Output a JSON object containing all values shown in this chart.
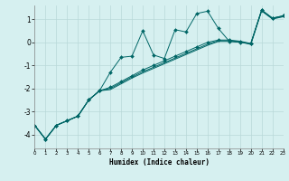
{
  "xlabel": "Humidex (Indice chaleur)",
  "background_color": "#d6f0f0",
  "grid_color": "#b8d8d8",
  "line_color": "#006666",
  "x_ticks": [
    0,
    1,
    2,
    3,
    4,
    5,
    6,
    7,
    8,
    9,
    10,
    11,
    12,
    13,
    14,
    15,
    16,
    17,
    18,
    19,
    20,
    21,
    22,
    23
  ],
  "y_ticks": [
    -4,
    -3,
    -2,
    -1,
    0,
    1
  ],
  "xlim": [
    0,
    23
  ],
  "ylim": [
    -4.6,
    1.6
  ],
  "series1_x": [
    0,
    1,
    2,
    3,
    4,
    5,
    6,
    7,
    8,
    9,
    10,
    11,
    12,
    13,
    14,
    15,
    16,
    17,
    18,
    19,
    20,
    21,
    22,
    23
  ],
  "series1_y": [
    -3.6,
    -4.2,
    -3.6,
    -3.4,
    -3.2,
    -2.5,
    -2.1,
    -1.3,
    -0.65,
    -0.6,
    0.5,
    -0.55,
    -0.7,
    0.55,
    0.45,
    1.25,
    1.35,
    0.6,
    0.05,
    0.0,
    -0.05,
    1.4,
    1.05,
    1.15
  ],
  "series2_x": [
    0,
    1,
    2,
    3,
    4,
    5,
    6,
    7,
    8,
    9,
    10,
    11,
    12,
    13,
    14,
    15,
    16,
    17,
    18,
    19,
    20,
    21,
    22,
    23
  ],
  "series2_y": [
    -3.6,
    -4.2,
    -3.6,
    -3.4,
    -3.2,
    -2.5,
    -2.1,
    -1.95,
    -1.7,
    -1.45,
    -1.2,
    -1.0,
    -0.8,
    -0.6,
    -0.4,
    -0.2,
    0.0,
    0.1,
    0.1,
    0.05,
    -0.05,
    1.4,
    1.05,
    1.15
  ],
  "series3_x": [
    0,
    1,
    2,
    3,
    4,
    5,
    6,
    7,
    8,
    9,
    10,
    11,
    12,
    13,
    14,
    15,
    16,
    17,
    18,
    19,
    20,
    21,
    22,
    23
  ],
  "series3_y": [
    -3.6,
    -4.2,
    -3.6,
    -3.4,
    -3.2,
    -2.5,
    -2.1,
    -2.0,
    -1.75,
    -1.5,
    -1.28,
    -1.08,
    -0.88,
    -0.68,
    -0.48,
    -0.28,
    -0.08,
    0.07,
    0.07,
    0.03,
    -0.07,
    1.38,
    1.03,
    1.13
  ],
  "series4_x": [
    0,
    1,
    2,
    3,
    4,
    5,
    6,
    7,
    8,
    9,
    10,
    11,
    12,
    13,
    14,
    15,
    16,
    17,
    18,
    19,
    20,
    21,
    22,
    23
  ],
  "series4_y": [
    -3.6,
    -4.2,
    -3.6,
    -3.4,
    -3.2,
    -2.5,
    -2.1,
    -2.05,
    -1.8,
    -1.55,
    -1.33,
    -1.13,
    -0.93,
    -0.73,
    -0.53,
    -0.33,
    -0.13,
    0.04,
    0.04,
    0.01,
    -0.09,
    1.36,
    1.01,
    1.11
  ]
}
